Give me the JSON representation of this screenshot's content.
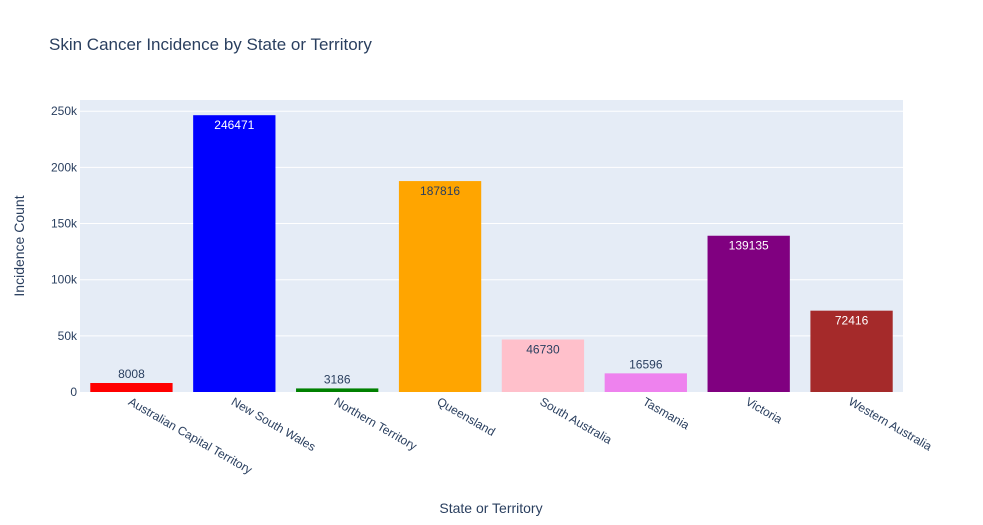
{
  "chart_data": {
    "type": "bar",
    "title": "Skin Cancer Incidence by State or Territory",
    "xlabel": "State or Territory",
    "ylabel": "Incidence Count",
    "ylim": [
      0,
      260000
    ],
    "yticks": [
      0,
      50000,
      100000,
      150000,
      200000,
      250000
    ],
    "ytick_labels": [
      "0",
      "50k",
      "100k",
      "150k",
      "200k",
      "250k"
    ],
    "grid": true,
    "categories": [
      "Australian Capital Territory",
      "New South Wales",
      "Northern Territory",
      "Queensland",
      "South Australia",
      "Tasmania",
      "Victoria",
      "Western Australia"
    ],
    "values": [
      8008,
      246471,
      3186,
      187816,
      46730,
      16596,
      139135,
      72416
    ],
    "data_labels": [
      "8008",
      "246471",
      "3186",
      "187816",
      "46730",
      "16596",
      "139135",
      "72416"
    ],
    "colors": [
      "#ff0000",
      "#0000ff",
      "#008000",
      "#ffa500",
      "#ffc0cb",
      "#ee82ee",
      "#800080",
      "#a52a2a"
    ],
    "label_colors": [
      "#2a3f5f",
      "#ffffff",
      "#2a3f5f",
      "#2a3f5f",
      "#2a3f5f",
      "#2a3f5f",
      "#ffffff",
      "#ffffff"
    ],
    "plot_bg": "#e5ecf6"
  }
}
